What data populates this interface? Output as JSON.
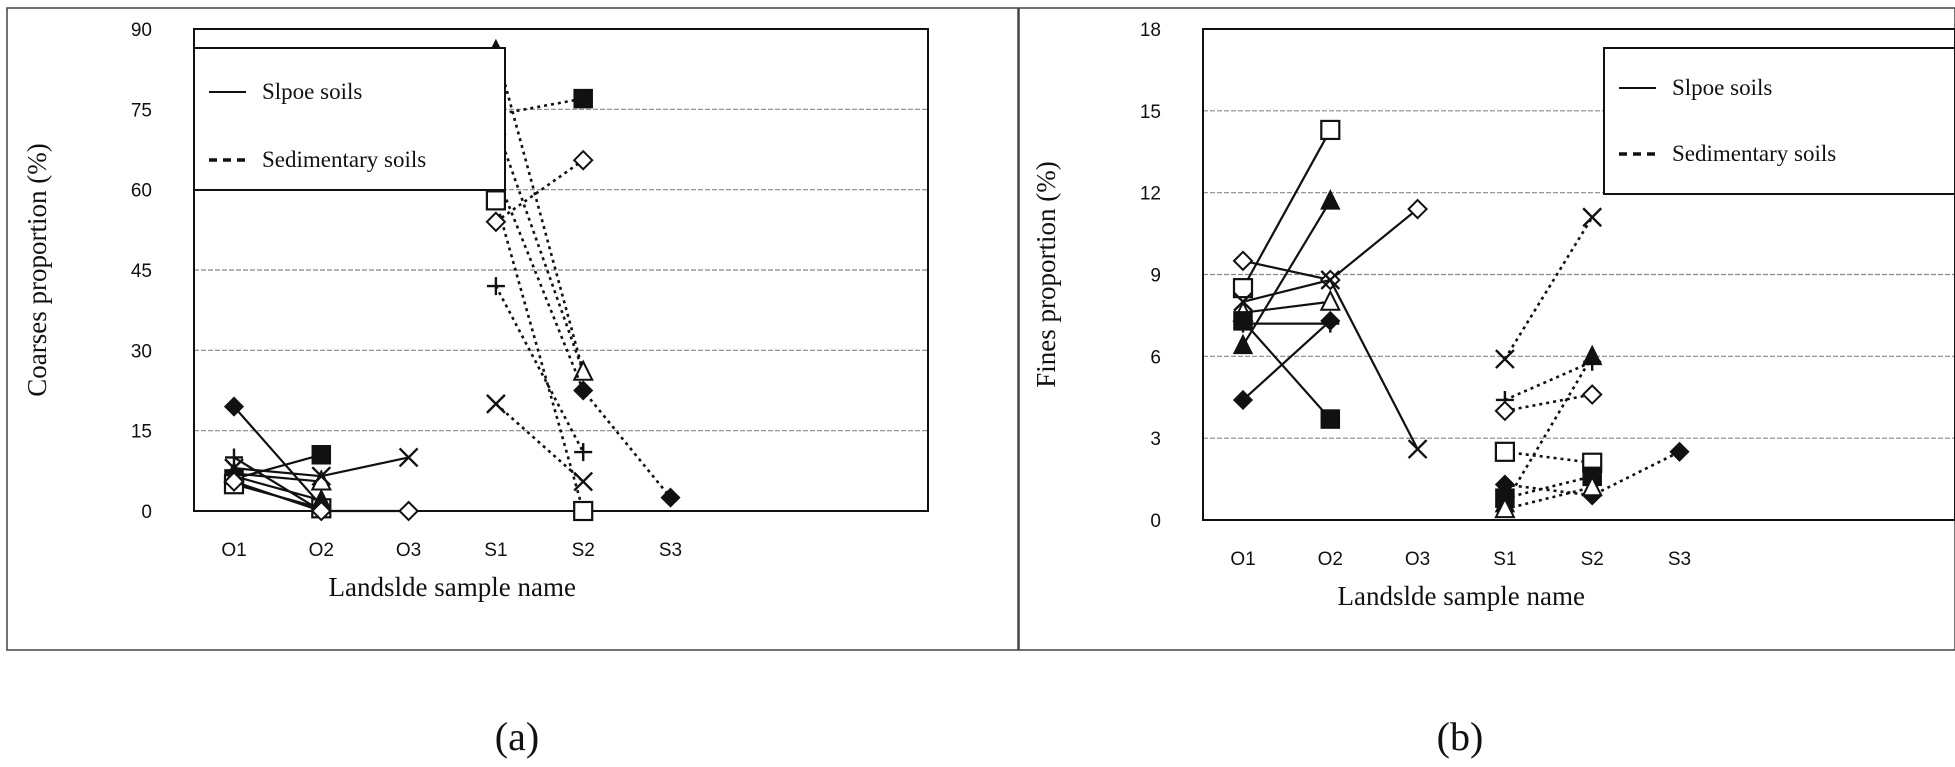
{
  "chart_data": [
    {
      "type": "line",
      "caption": "(a)",
      "xlabel": "Landslde sample name",
      "ylabel": "Coarses proportion (%)",
      "categories": [
        "O1",
        "O2",
        "O3",
        "S1",
        "S2",
        "S3"
      ],
      "ylim": [
        0,
        90
      ],
      "yticks": [
        0,
        15,
        30,
        45,
        60,
        75,
        90
      ],
      "grid": true,
      "legend_position": "top-left",
      "legend": [
        {
          "label": "Slpoe soils",
          "style": "solid"
        },
        {
          "label": "Sedimentary soils",
          "style": "dashed"
        }
      ],
      "series": [
        {
          "marker": "diamond-filled",
          "style": "solid",
          "points": [
            [
              "O1",
              19.5
            ],
            [
              "O2",
              1
            ]
          ]
        },
        {
          "marker": "square-filled",
          "style": "solid",
          "points": [
            [
              "O1",
              6
            ],
            [
              "O2",
              10.5
            ]
          ]
        },
        {
          "marker": "triangle-open",
          "style": "solid",
          "points": [
            [
              "O1",
              7
            ],
            [
              "O2",
              5.5
            ]
          ]
        },
        {
          "marker": "x",
          "style": "solid",
          "points": [
            [
              "O1",
              8
            ],
            [
              "O2",
              6.5
            ],
            [
              "O3",
              10
            ]
          ]
        },
        {
          "marker": "square-open",
          "style": "solid",
          "points": [
            [
              "O1",
              5
            ],
            [
              "O2",
              0.5
            ]
          ]
        },
        {
          "marker": "plus",
          "style": "solid",
          "points": [
            [
              "O1",
              10
            ],
            [
              "O2",
              0
            ]
          ]
        },
        {
          "marker": "triangle-filled",
          "style": "solid",
          "points": [
            [
              "O1",
              6.5
            ],
            [
              "O2",
              2
            ]
          ]
        },
        {
          "marker": "diamond-open",
          "style": "solid",
          "points": [
            [
              "O1",
              5.5
            ],
            [
              "O2",
              0
            ],
            [
              "O3",
              0
            ]
          ]
        },
        {
          "marker": "triangle-filled",
          "style": "dashed",
          "points": [
            [
              "S1",
              86
            ],
            [
              "S2",
              26
            ]
          ]
        },
        {
          "marker": "square-filled",
          "style": "dashed",
          "points": [
            [
              "S1",
              74
            ],
            [
              "S2",
              77
            ]
          ]
        },
        {
          "marker": "triangle-open",
          "style": "dashed",
          "points": [
            [
              "S1",
              72
            ],
            [
              "S2",
              26
            ]
          ]
        },
        {
          "marker": "diamond-filled",
          "style": "dashed",
          "points": [
            [
              "S1",
              63
            ],
            [
              "S2",
              22.5
            ],
            [
              "S3",
              2.5
            ]
          ]
        },
        {
          "marker": "square-open",
          "style": "dashed",
          "points": [
            [
              "S1",
              58
            ],
            [
              "S2",
              0
            ]
          ]
        },
        {
          "marker": "diamond-open",
          "style": "dashed",
          "points": [
            [
              "S1",
              54
            ],
            [
              "S2",
              65.5
            ]
          ]
        },
        {
          "marker": "plus",
          "style": "dashed",
          "points": [
            [
              "S1",
              42
            ],
            [
              "S2",
              11
            ]
          ]
        },
        {
          "marker": "x",
          "style": "dashed",
          "points": [
            [
              "S1",
              20
            ],
            [
              "S2",
              5.5
            ]
          ]
        }
      ]
    },
    {
      "type": "line",
      "caption": "(b)",
      "xlabel": "Landslde sample name",
      "ylabel": "Fines proportion (%)",
      "categories": [
        "O1",
        "O2",
        "O3",
        "S1",
        "S2",
        "S3"
      ],
      "ylim": [
        0,
        18
      ],
      "yticks": [
        0,
        3,
        6,
        9,
        12,
        15,
        18
      ],
      "grid": true,
      "legend_position": "top-right",
      "legend": [
        {
          "label": "Slpoe soils",
          "style": "solid"
        },
        {
          "label": "Sedimentary soils",
          "style": "dashed"
        }
      ],
      "series": [
        {
          "marker": "diamond-open",
          "style": "solid",
          "points": [
            [
              "O1",
              9.5
            ],
            [
              "O2",
              8.8
            ],
            [
              "O3",
              11.4
            ]
          ]
        },
        {
          "marker": "square-open",
          "style": "solid",
          "points": [
            [
              "O1",
              8.5
            ],
            [
              "O2",
              14.3
            ]
          ]
        },
        {
          "marker": "x",
          "style": "solid",
          "points": [
            [
              "O1",
              8
            ],
            [
              "O2",
              8.8
            ],
            [
              "O3",
              2.6
            ]
          ]
        },
        {
          "marker": "triangle-open",
          "style": "solid",
          "points": [
            [
              "O1",
              7.6
            ],
            [
              "O2",
              8
            ]
          ]
        },
        {
          "marker": "square-filled",
          "style": "solid",
          "points": [
            [
              "O1",
              7.3
            ],
            [
              "O2",
              3.7
            ]
          ]
        },
        {
          "marker": "plus",
          "style": "solid",
          "points": [
            [
              "O1",
              7.2
            ],
            [
              "O2",
              7.2
            ]
          ]
        },
        {
          "marker": "triangle-filled",
          "style": "solid",
          "points": [
            [
              "O1",
              6.4
            ],
            [
              "O2",
              11.7
            ]
          ]
        },
        {
          "marker": "diamond-filled",
          "style": "solid",
          "points": [
            [
              "O1",
              4.4
            ],
            [
              "O2",
              7.3
            ]
          ]
        },
        {
          "marker": "x",
          "style": "dashed",
          "points": [
            [
              "S1",
              5.9
            ],
            [
              "S2",
              11.1
            ]
          ]
        },
        {
          "marker": "plus",
          "style": "dashed",
          "points": [
            [
              "S1",
              4.4
            ],
            [
              "S2",
              5.8
            ]
          ]
        },
        {
          "marker": "diamond-open",
          "style": "dashed",
          "points": [
            [
              "S1",
              4.0
            ],
            [
              "S2",
              4.6
            ]
          ]
        },
        {
          "marker": "square-open",
          "style": "dashed",
          "points": [
            [
              "S1",
              2.5
            ],
            [
              "S2",
              2.1
            ]
          ]
        },
        {
          "marker": "diamond-filled",
          "style": "dashed",
          "points": [
            [
              "S1",
              1.3
            ],
            [
              "S2",
              0.9
            ],
            [
              "S3",
              2.5
            ]
          ]
        },
        {
          "marker": "square-filled",
          "style": "dashed",
          "points": [
            [
              "S1",
              0.8
            ],
            [
              "S2",
              1.6
            ]
          ]
        },
        {
          "marker": "triangle-filled",
          "style": "dashed",
          "points": [
            [
              "S1",
              0.6
            ],
            [
              "S2",
              6.0
            ]
          ]
        },
        {
          "marker": "triangle-open",
          "style": "dashed",
          "points": [
            [
              "S1",
              0.4
            ],
            [
              "S2",
              1.2
            ]
          ]
        }
      ]
    }
  ]
}
